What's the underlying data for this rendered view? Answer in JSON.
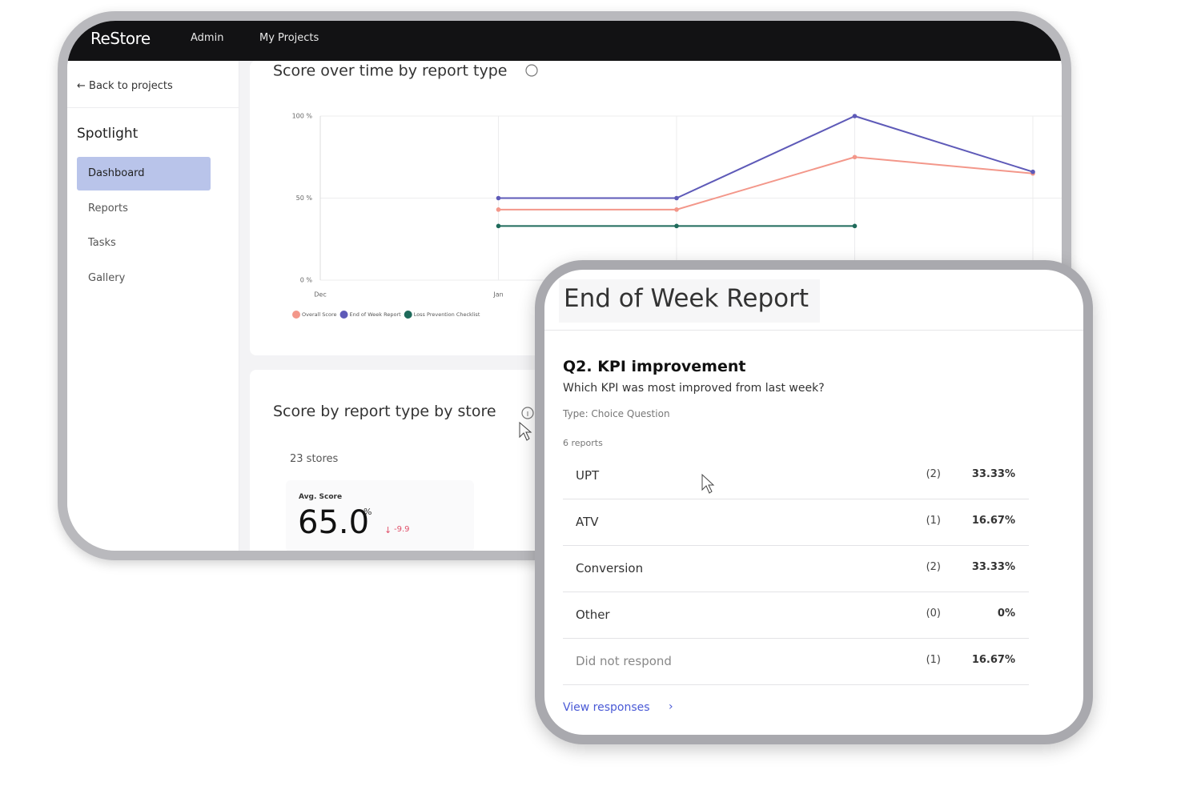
{
  "nav": {
    "brand": "ReStore",
    "links": [
      "Admin",
      "My Projects"
    ]
  },
  "sidebar": {
    "back": "← Back to projects",
    "section": "Spotlight",
    "items": [
      "Dashboard",
      "Reports",
      "Tasks",
      "Gallery"
    ]
  },
  "chart_data": {
    "type": "line",
    "title": "Score over time by report type",
    "categories": [
      "Dec",
      "Jan",
      null,
      null,
      null
    ],
    "series": [
      {
        "name": "Overall Score",
        "color": "#f3978a",
        "values": [
          null,
          43,
          43,
          75,
          65
        ]
      },
      {
        "name": "End of Week Report",
        "color": "#5e5ab8",
        "values": [
          null,
          50,
          50,
          100,
          66
        ]
      },
      {
        "name": "Loss Prevention Checklist",
        "color": "#1f6b5b",
        "values": [
          null,
          33,
          33,
          33,
          null
        ]
      }
    ],
    "ylim": [
      0,
      100
    ],
    "yticks": [
      {
        "value": 0,
        "label": "0 %"
      },
      {
        "value": 50,
        "label": "50 %"
      },
      {
        "value": 100,
        "label": "100 %"
      }
    ],
    "grid": true
  },
  "store_section": {
    "title": "Score by report type by store",
    "count": "23 stores",
    "metric_label": "Avg. Score",
    "metric_value": "65.0",
    "metric_unit": "%",
    "delta": "-9.9"
  },
  "report": {
    "title": "End of Week Report",
    "question_title": "Q2. KPI improvement",
    "question": "Which KPI was most improved from last week?",
    "type": "Type: Choice Question",
    "responses": "6 reports",
    "rows": [
      [
        "UPT",
        "(2)",
        "33.33%"
      ],
      [
        "ATV",
        "(1)",
        "16.67%"
      ],
      [
        "Conversion",
        "(2)",
        "33.33%"
      ],
      [
        "Other",
        "(0)",
        "0%"
      ],
      [
        "Did not respond",
        "(1)",
        "16.67%"
      ]
    ],
    "link": "View responses"
  }
}
